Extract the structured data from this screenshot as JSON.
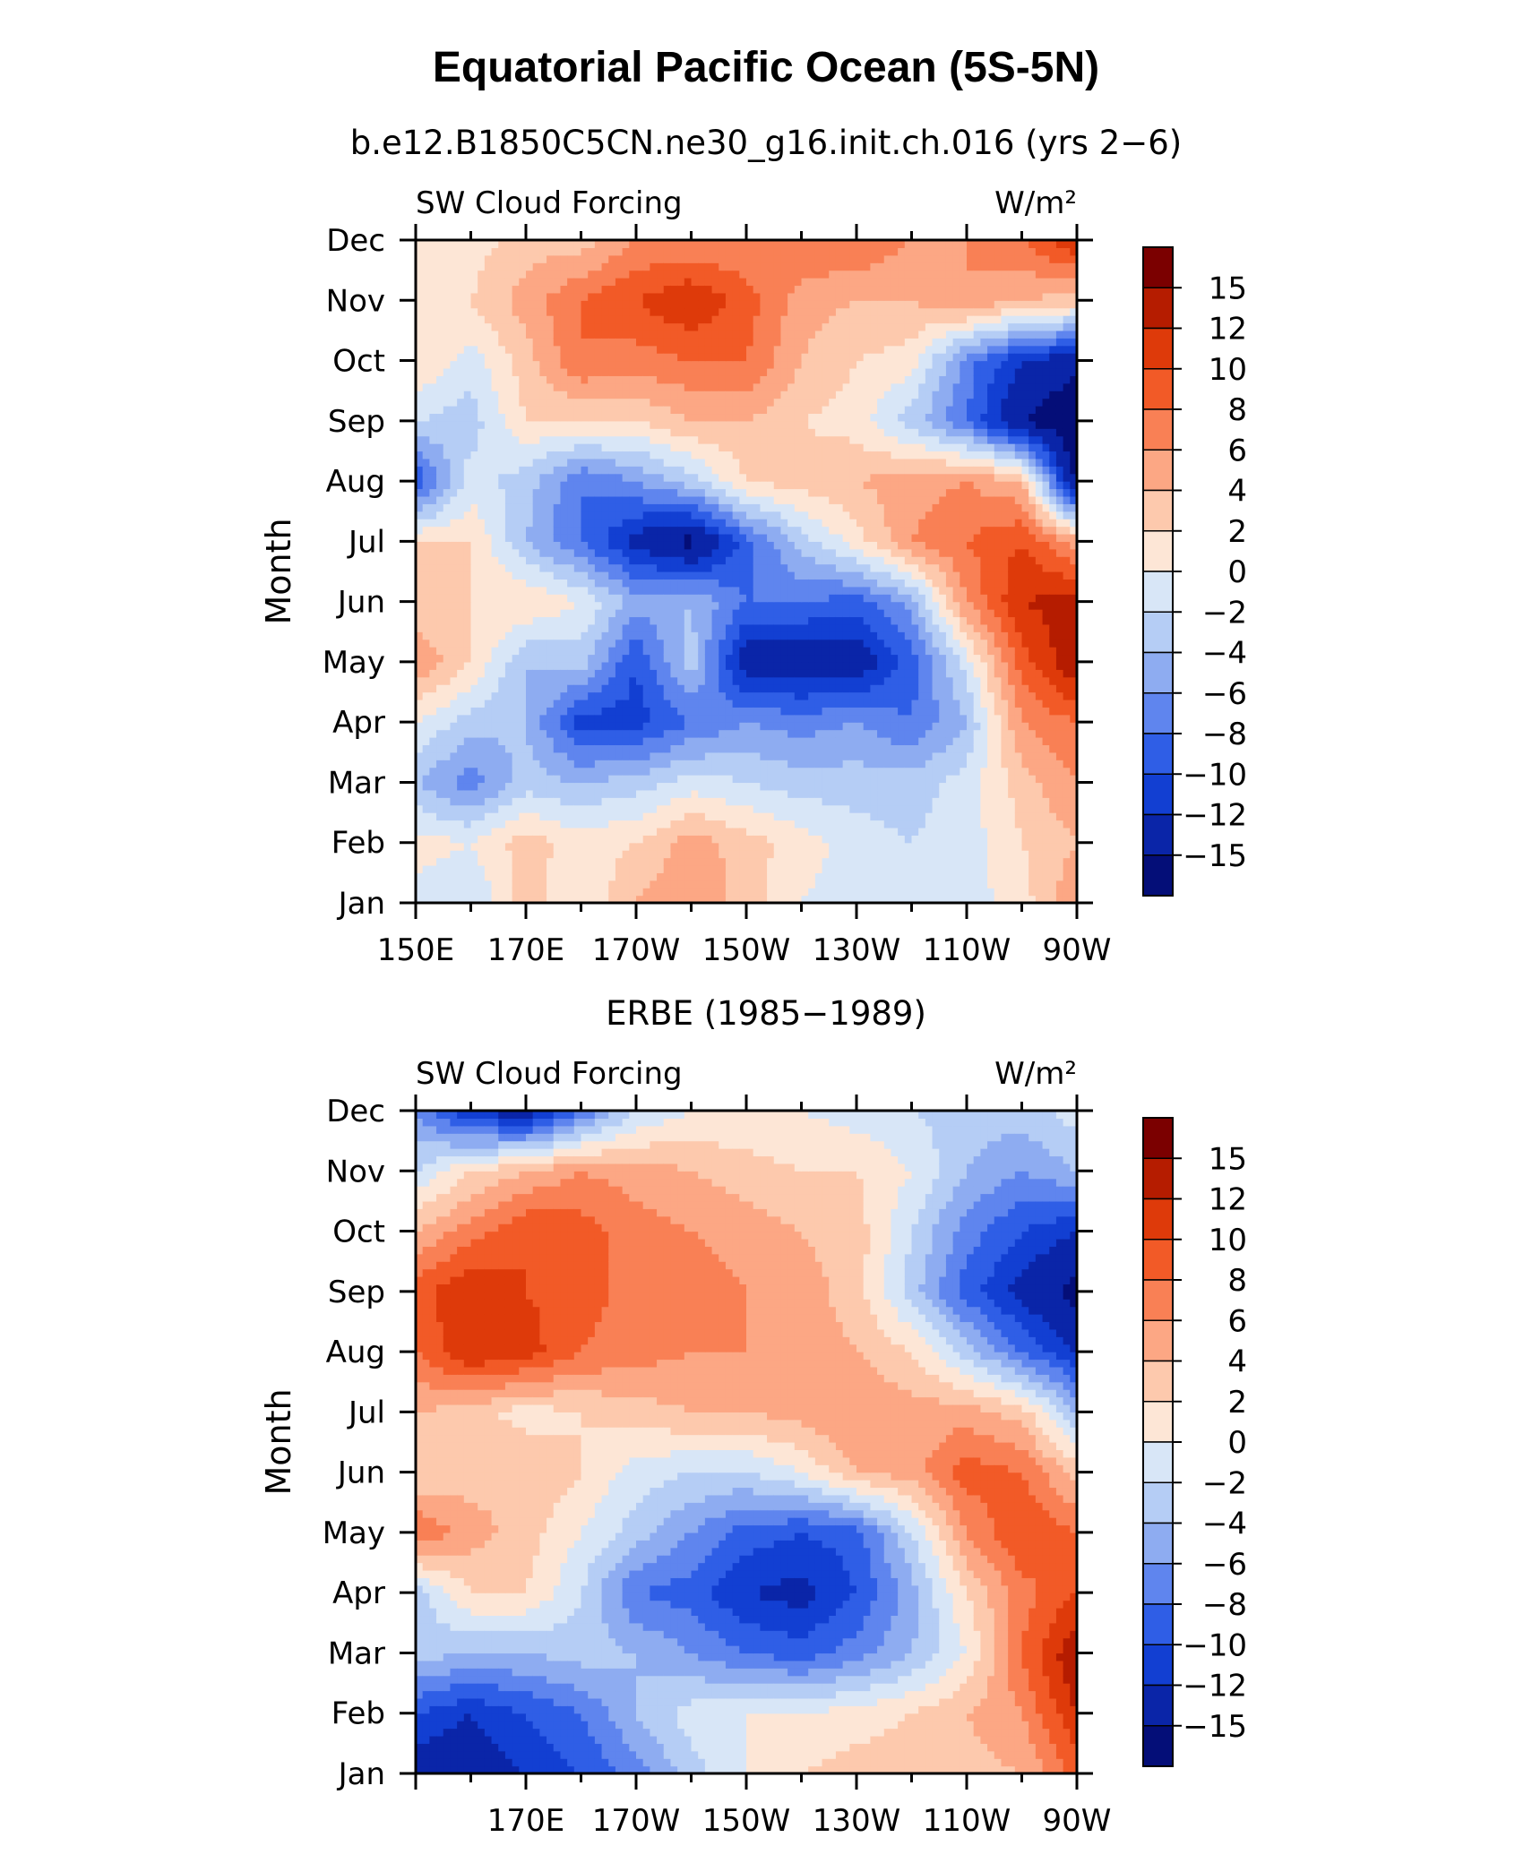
{
  "title": "Equatorial Pacific Ocean (5S-5N)",
  "colorscale": {
    "levels": [
      "15",
      "12",
      "10",
      "8",
      "6",
      "4",
      "2",
      "0",
      "−2",
      "−4",
      "−6",
      "−8",
      "−10",
      "−12",
      "−15"
    ],
    "colors": [
      "#7b0000",
      "#b51c00",
      "#de3a0a",
      "#f25a27",
      "#f98055",
      "#fca784",
      "#fdc9ad",
      "#fde6d6",
      "#d8e6f7",
      "#b5cdf5",
      "#8eacf1",
      "#5f85ee",
      "#2f5ee6",
      "#123fd2",
      "#0a25a8",
      "#040e78"
    ]
  },
  "chart_data": [
    {
      "type": "heatmap",
      "title": "b.e12.B1850C5CN.ne30_g16.init.ch.016 (yrs 2−6)",
      "left_label": "SW Cloud Forcing",
      "right_label": "W/m²",
      "ylabel": "Month",
      "x_ticklabels": [
        "150E",
        "170E",
        "170W",
        "150W",
        "130W",
        "110W",
        "90W"
      ],
      "y_ticklabels": [
        "Jan",
        "Feb",
        "Mar",
        "Apr",
        "May",
        "Jun",
        "Jul",
        "Aug",
        "Sep",
        "Oct",
        "Nov",
        "Dec"
      ],
      "x": [
        150,
        160,
        170,
        180,
        190,
        200,
        210,
        220,
        230,
        240,
        250,
        260,
        270
      ],
      "y": [
        "Jan",
        "Feb",
        "Mar",
        "Apr",
        "May",
        "Jun",
        "Jul",
        "Aug",
        "Sep",
        "Oct",
        "Nov",
        "Dec"
      ],
      "z": [
        [
          -1,
          -2,
          3,
          0,
          4,
          6,
          3,
          0,
          -1,
          -1,
          -1,
          1,
          6
        ],
        [
          1,
          0,
          3,
          1,
          2,
          5,
          3,
          1,
          -1,
          -2,
          -1,
          2,
          4
        ],
        [
          -4,
          -7,
          -3,
          -4,
          -3,
          -1,
          -2,
          -3,
          -3,
          -3,
          -1,
          3,
          6
        ],
        [
          0,
          -3,
          -4,
          -11,
          -11,
          -8,
          -6,
          -7,
          -6,
          -8,
          -4,
          6,
          8
        ],
        [
          6,
          2,
          -4,
          -3,
          -10,
          -3,
          -14,
          -14,
          -14,
          -9,
          -1,
          9,
          14
        ],
        [
          2,
          2,
          2,
          0,
          -5,
          -4,
          -8,
          -8,
          -9,
          -5,
          6,
          12,
          13
        ],
        [
          2,
          2,
          -4,
          -8,
          -13,
          -16,
          -9,
          -3,
          1,
          6,
          8,
          10,
          5
        ],
        [
          -10,
          -1,
          -3,
          -8,
          -6,
          -3,
          2,
          3,
          4,
          5,
          6,
          4,
          -16
        ],
        [
          -2,
          -3,
          2,
          2,
          2,
          4,
          4,
          2,
          1,
          -3,
          -8,
          -15,
          -18
        ],
        [
          2,
          -1,
          3,
          8,
          7,
          8,
          8,
          4,
          2,
          1,
          -7,
          -12,
          -14
        ],
        [
          2,
          2,
          5,
          8,
          10,
          12,
          9,
          5,
          4,
          4,
          6,
          4,
          3
        ],
        [
          2,
          1,
          3,
          3,
          6,
          6,
          6,
          8,
          8,
          6,
          6,
          8,
          12
        ]
      ]
    },
    {
      "type": "heatmap",
      "title": "ERBE (1985−1989)",
      "left_label": "SW Cloud Forcing",
      "right_label": "W/m²",
      "ylabel": "Month",
      "x_ticklabels": [
        "170E",
        "170W",
        "150W",
        "130W",
        "110W",
        "90W"
      ],
      "y_ticklabels": [
        "Jan",
        "Feb",
        "Mar",
        "Apr",
        "May",
        "Jun",
        "Jul",
        "Aug",
        "Sep",
        "Oct",
        "Nov",
        "Dec"
      ],
      "x": [
        150,
        160,
        170,
        180,
        190,
        200,
        210,
        220,
        230,
        240,
        250,
        260,
        270
      ],
      "y": [
        "Jan",
        "Feb",
        "Mar",
        "Apr",
        "May",
        "Jun",
        "Jul",
        "Aug",
        "Sep",
        "Oct",
        "Nov",
        "Dec"
      ],
      "z": [
        [
          -14,
          -14,
          -12,
          -10,
          -7,
          -3,
          0,
          2,
          3,
          3,
          3,
          4,
          9
        ],
        [
          -10,
          -12,
          -10,
          -8,
          -4,
          -1,
          0,
          0,
          1,
          2,
          4,
          6,
          12
        ],
        [
          -3,
          -4,
          -4,
          -3,
          -4,
          -6,
          -8,
          -9,
          -7,
          -4,
          0,
          8,
          14
        ],
        [
          -3,
          2,
          2,
          -2,
          -8,
          -9,
          -12,
          -13,
          -10,
          -5,
          2,
          7,
          10
        ],
        [
          8,
          5,
          3,
          0,
          -3,
          -6,
          -9,
          -10,
          -9,
          -2,
          6,
          10,
          8
        ],
        [
          2,
          3,
          4,
          2,
          -1,
          -2,
          -2,
          0,
          4,
          5,
          9,
          8,
          3
        ],
        [
          4,
          3,
          1,
          2,
          3,
          4,
          4,
          5,
          6,
          5,
          5,
          3,
          -4
        ],
        [
          8,
          12,
          11,
          8,
          7,
          6,
          6,
          5,
          4,
          2,
          -3,
          -8,
          -12
        ],
        [
          9,
          12,
          10,
          9,
          7,
          7,
          6,
          5,
          3,
          -3,
          -9,
          -13,
          -16
        ],
        [
          4,
          7,
          10,
          9,
          7,
          6,
          5,
          4,
          3,
          -2,
          -7,
          -10,
          -12
        ],
        [
          -2,
          2,
          4,
          6,
          5,
          4,
          3,
          2,
          2,
          0,
          -4,
          -6,
          -4
        ],
        [
          -6,
          -12,
          -14,
          -8,
          -2,
          0,
          0,
          0,
          -1,
          -2,
          -3,
          -3,
          -1
        ]
      ]
    }
  ]
}
